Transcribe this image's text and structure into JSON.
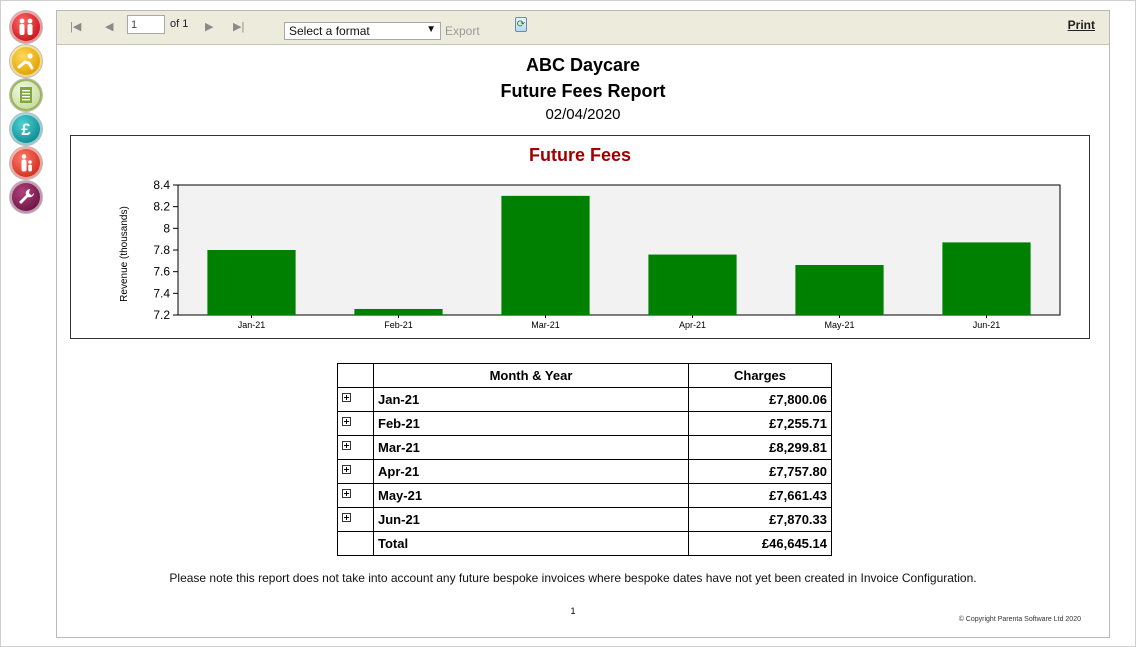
{
  "toolbar": {
    "first_page_icon": "first-page-icon",
    "prev_page_icon": "previous-page-icon",
    "page_value": "1",
    "of_label": "of 1",
    "next_page_icon": "next-page-icon",
    "last_page_icon": "last-page-icon",
    "format_select": "Select a format",
    "export_label": "Export",
    "refresh_icon": "refresh-icon",
    "print_label": "Print"
  },
  "sidebar": {
    "items": [
      {
        "icon": "family-icon",
        "color": "#c8161d"
      },
      {
        "icon": "child-play-icon",
        "color": "#e0a300"
      },
      {
        "icon": "document-icon",
        "color": "#c8dca0"
      },
      {
        "icon": "pound-icon",
        "color": "#0f8c92"
      },
      {
        "icon": "parent-child-icon",
        "color": "#d0301f"
      },
      {
        "icon": "wrench-icon",
        "color": "#6e1546"
      }
    ]
  },
  "report": {
    "company": "ABC Daycare",
    "title": "Future Fees Report",
    "date": "02/04/2020",
    "note": "Please note this report does not take into account any future bespoke invoices where bespoke dates have not yet been created in Invoice Configuration.",
    "page_number": "1",
    "copyright": "© Copyright Parenta Software Ltd 2020"
  },
  "chart_data": {
    "type": "bar",
    "title": "Future Fees",
    "xlabel": "",
    "ylabel": "Revenue (thousands)",
    "categories": [
      "Jan-21",
      "Feb-21",
      "Mar-21",
      "Apr-21",
      "May-21",
      "Jun-21"
    ],
    "values": [
      7.80006,
      7.25571,
      8.29981,
      7.7578,
      7.66143,
      7.87033
    ],
    "ylim": [
      7.2,
      8.4
    ],
    "yticks": [
      "8.4",
      "8.2",
      "8",
      "7.8",
      "7.6",
      "7.4",
      "7.2"
    ],
    "bar_color": "#008000",
    "plot_background": "#f2f2f2",
    "title_color": "#a10000",
    "grid": false,
    "legend": "none"
  },
  "table": {
    "headers": [
      "Month & Year",
      "Charges"
    ],
    "rows": [
      {
        "month": "Jan-21",
        "charges": "£7,800.06"
      },
      {
        "month": "Feb-21",
        "charges": "£7,255.71"
      },
      {
        "month": "Mar-21",
        "charges": "£8,299.81"
      },
      {
        "month": "Apr-21",
        "charges": "£7,757.80"
      },
      {
        "month": "May-21",
        "charges": "£7,661.43"
      },
      {
        "month": "Jun-21",
        "charges": "£7,870.33"
      }
    ],
    "total_label": "Total",
    "total_value": "£46,645.14"
  }
}
